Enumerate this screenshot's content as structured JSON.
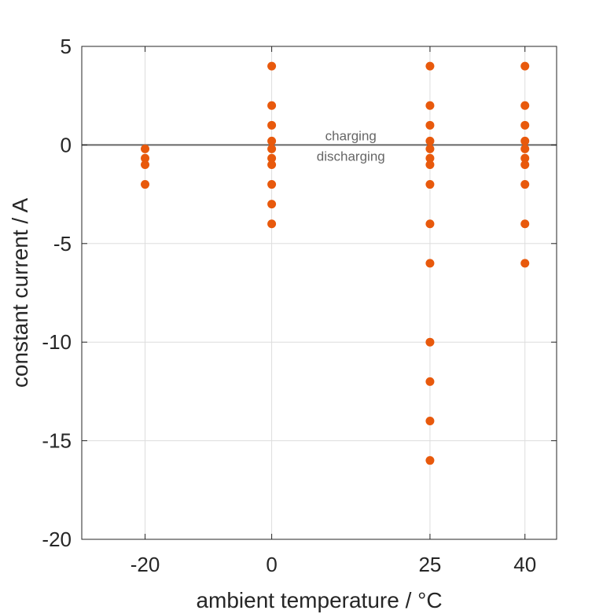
{
  "chart_data": {
    "type": "scatter",
    "title": "",
    "xlabel": "ambient temperature / °C",
    "ylabel": "constant current / A",
    "xlim": [
      -30,
      45
    ],
    "ylim": [
      -20,
      5
    ],
    "xticks": [
      -20,
      0,
      25,
      40
    ],
    "yticks": [
      5,
      0,
      -5,
      -10,
      -15,
      -20
    ],
    "xtick_labels": [
      "-20",
      "0",
      "25",
      "40"
    ],
    "ytick_labels": [
      "5",
      "0",
      "-5",
      "-10",
      "-15",
      "-20"
    ],
    "grid": true,
    "reference_line": {
      "y": 0
    },
    "annotations": {
      "above": "charging",
      "below": "discharging"
    },
    "series": [
      {
        "color": "#e8590c",
        "points": [
          {
            "x": -20,
            "y": -0.2
          },
          {
            "x": -20,
            "y": -0.67
          },
          {
            "x": -20,
            "y": -1
          },
          {
            "x": -20,
            "y": -2
          },
          {
            "x": 0,
            "y": 4
          },
          {
            "x": 0,
            "y": 2
          },
          {
            "x": 0,
            "y": 1
          },
          {
            "x": 0,
            "y": 0.2
          },
          {
            "x": 0,
            "y": -0.2
          },
          {
            "x": 0,
            "y": -0.67
          },
          {
            "x": 0,
            "y": -1
          },
          {
            "x": 0,
            "y": -2
          },
          {
            "x": 0,
            "y": -3
          },
          {
            "x": 0,
            "y": -4
          },
          {
            "x": 25,
            "y": 4
          },
          {
            "x": 25,
            "y": 2
          },
          {
            "x": 25,
            "y": 1
          },
          {
            "x": 25,
            "y": 0.2
          },
          {
            "x": 25,
            "y": -0.2
          },
          {
            "x": 25,
            "y": -0.67
          },
          {
            "x": 25,
            "y": -1
          },
          {
            "x": 25,
            "y": -2
          },
          {
            "x": 25,
            "y": -4
          },
          {
            "x": 25,
            "y": -6
          },
          {
            "x": 25,
            "y": -10
          },
          {
            "x": 25,
            "y": -12
          },
          {
            "x": 25,
            "y": -14
          },
          {
            "x": 25,
            "y": -16
          },
          {
            "x": 40,
            "y": 4
          },
          {
            "x": 40,
            "y": 2
          },
          {
            "x": 40,
            "y": 1
          },
          {
            "x": 40,
            "y": 0.2
          },
          {
            "x": 40,
            "y": -0.2
          },
          {
            "x": 40,
            "y": -0.67
          },
          {
            "x": 40,
            "y": -1
          },
          {
            "x": 40,
            "y": -2
          },
          {
            "x": 40,
            "y": -4
          },
          {
            "x": 40,
            "y": -6
          }
        ]
      }
    ],
    "colors": {
      "point": "#e8590c",
      "reference_line": "#666666",
      "grid": "#dddddd",
      "axis": "#262626",
      "annotation": "#666666"
    }
  }
}
